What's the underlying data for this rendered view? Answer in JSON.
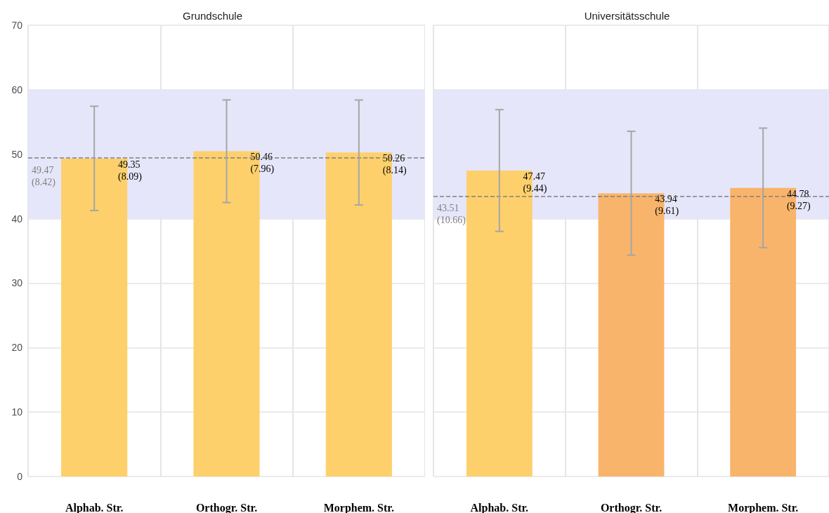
{
  "chart_data": [
    {
      "type": "bar",
      "title": "Grundschule",
      "categories": [
        "Alphab. Str.",
        "Orthogr. Str.",
        "Morphem. Str."
      ],
      "values": [
        49.35,
        50.46,
        50.26
      ],
      "colors": [
        "#fdd06c",
        "#fdd06c",
        "#fdd06c"
      ],
      "errors": [
        8.09,
        7.96,
        8.14
      ],
      "value_labels": [
        "49.35\n(8.09)",
        "50.46\n(7.96)",
        "50.26\n(8.14)"
      ],
      "ylim": [
        0,
        70
      ],
      "yticks": [
        0,
        10,
        20,
        30,
        40,
        50,
        60,
        70
      ],
      "grid": true,
      "ref_lines": [
        {
          "axis": "y",
          "value": 49.47,
          "label": "49.47\n(8.42)",
          "color": "#808080",
          "line_style": "dashed"
        }
      ],
      "bands": [
        {
          "axis": "y",
          "from": 40,
          "to": 60,
          "color": "#e6e6fa"
        }
      ]
    },
    {
      "type": "bar",
      "title": "Universitätsschule",
      "categories": [
        "Alphab. Str.",
        "Orthogr. Str.",
        "Morphem. Str."
      ],
      "values": [
        47.47,
        43.94,
        44.78
      ],
      "colors": [
        "#fdd06c",
        "#f9b46b",
        "#f9b46b"
      ],
      "errors": [
        9.44,
        9.61,
        9.27
      ],
      "value_labels": [
        "47.47\n(9.44)",
        "43.94\n(9.61)",
        "44.78\n(9.27)"
      ],
      "ylim": [
        0,
        70
      ],
      "yticks": [
        0,
        10,
        20,
        30,
        40,
        50,
        60,
        70
      ],
      "grid": true,
      "tick_labels": "x",
      "ref_lines": [
        {
          "axis": "y",
          "value": 43.51,
          "label": "43.51\n(10.66)",
          "color": "#808080",
          "line_style": "dashed"
        }
      ],
      "bands": [
        {
          "axis": "y",
          "from": 40,
          "to": 60,
          "color": "#e6e6fa"
        }
      ]
    }
  ]
}
